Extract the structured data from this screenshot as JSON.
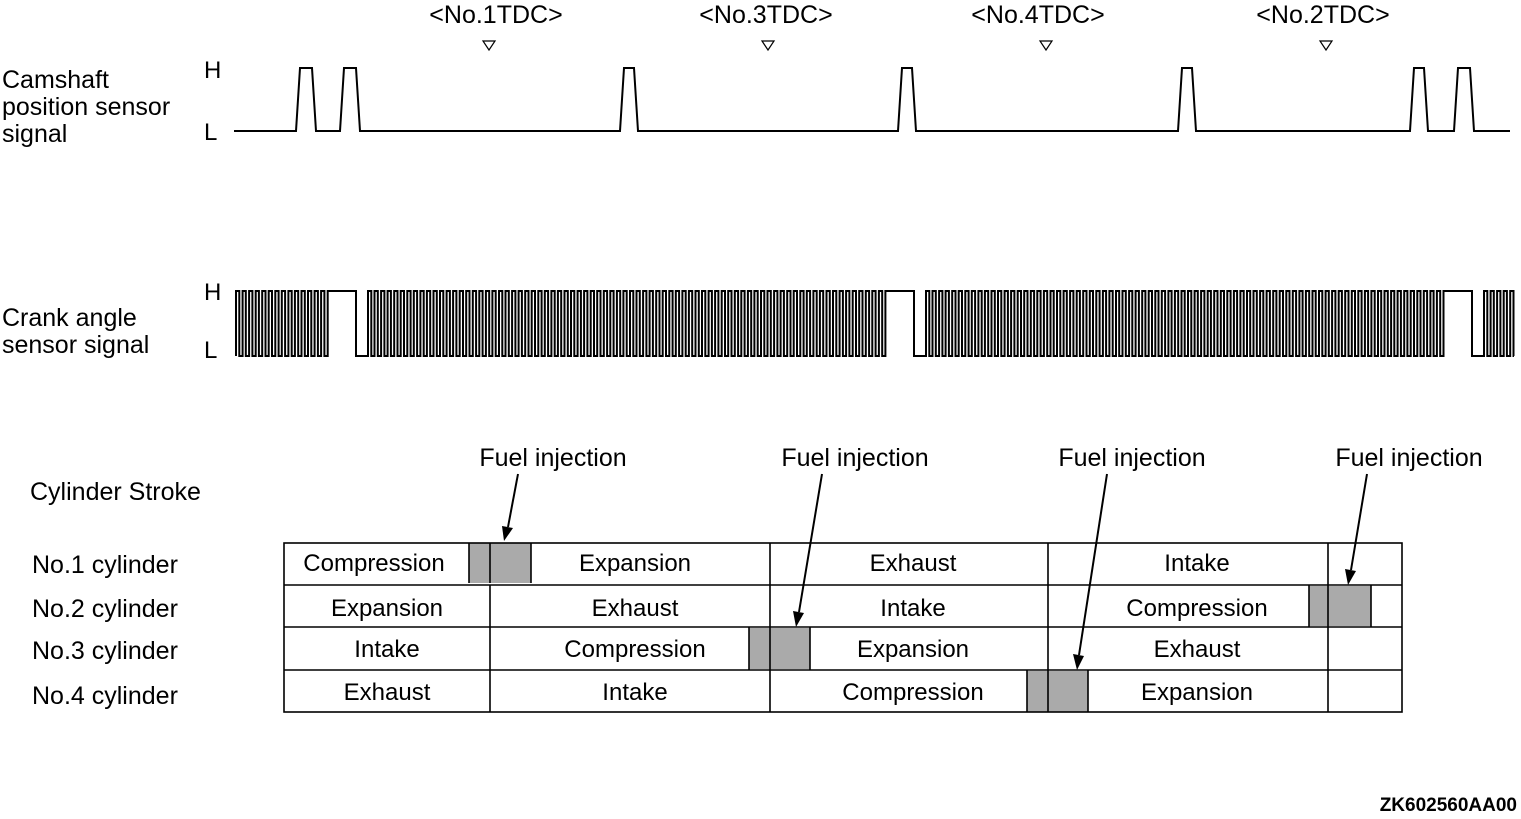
{
  "tdc_markers": [
    "<No.1TDC>",
    "<No.3TDC>",
    "<No.4TDC>",
    "<No.2TDC>"
  ],
  "camshaft": {
    "label_lines": [
      "Camshaft",
      "position sensor",
      "signal"
    ],
    "high": "H",
    "low": "L"
  },
  "crank": {
    "label_lines": [
      "Crank angle",
      "sensor signal"
    ],
    "high": "H",
    "low": "L"
  },
  "stroke_table": {
    "heading": "Cylinder Stroke",
    "fuel_injection_label": "Fuel injection",
    "rows": [
      {
        "name": "No.1 cylinder",
        "strokes": [
          "Compression",
          "Expansion",
          "Exhaust",
          "Intake",
          ""
        ]
      },
      {
        "name": "No.2 cylinder",
        "strokes": [
          "Expansion",
          "Exhaust",
          "Intake",
          "Compression",
          ""
        ]
      },
      {
        "name": "No.3 cylinder",
        "strokes": [
          "Intake",
          "Compression",
          "Expansion",
          "Exhaust",
          ""
        ]
      },
      {
        "name": "No.4 cylinder",
        "strokes": [
          "Exhaust",
          "Intake",
          "Compression",
          "Expansion",
          ""
        ]
      }
    ],
    "injection_fill_color": "#aaaaaa"
  },
  "figure_code": "ZK602560AA00"
}
